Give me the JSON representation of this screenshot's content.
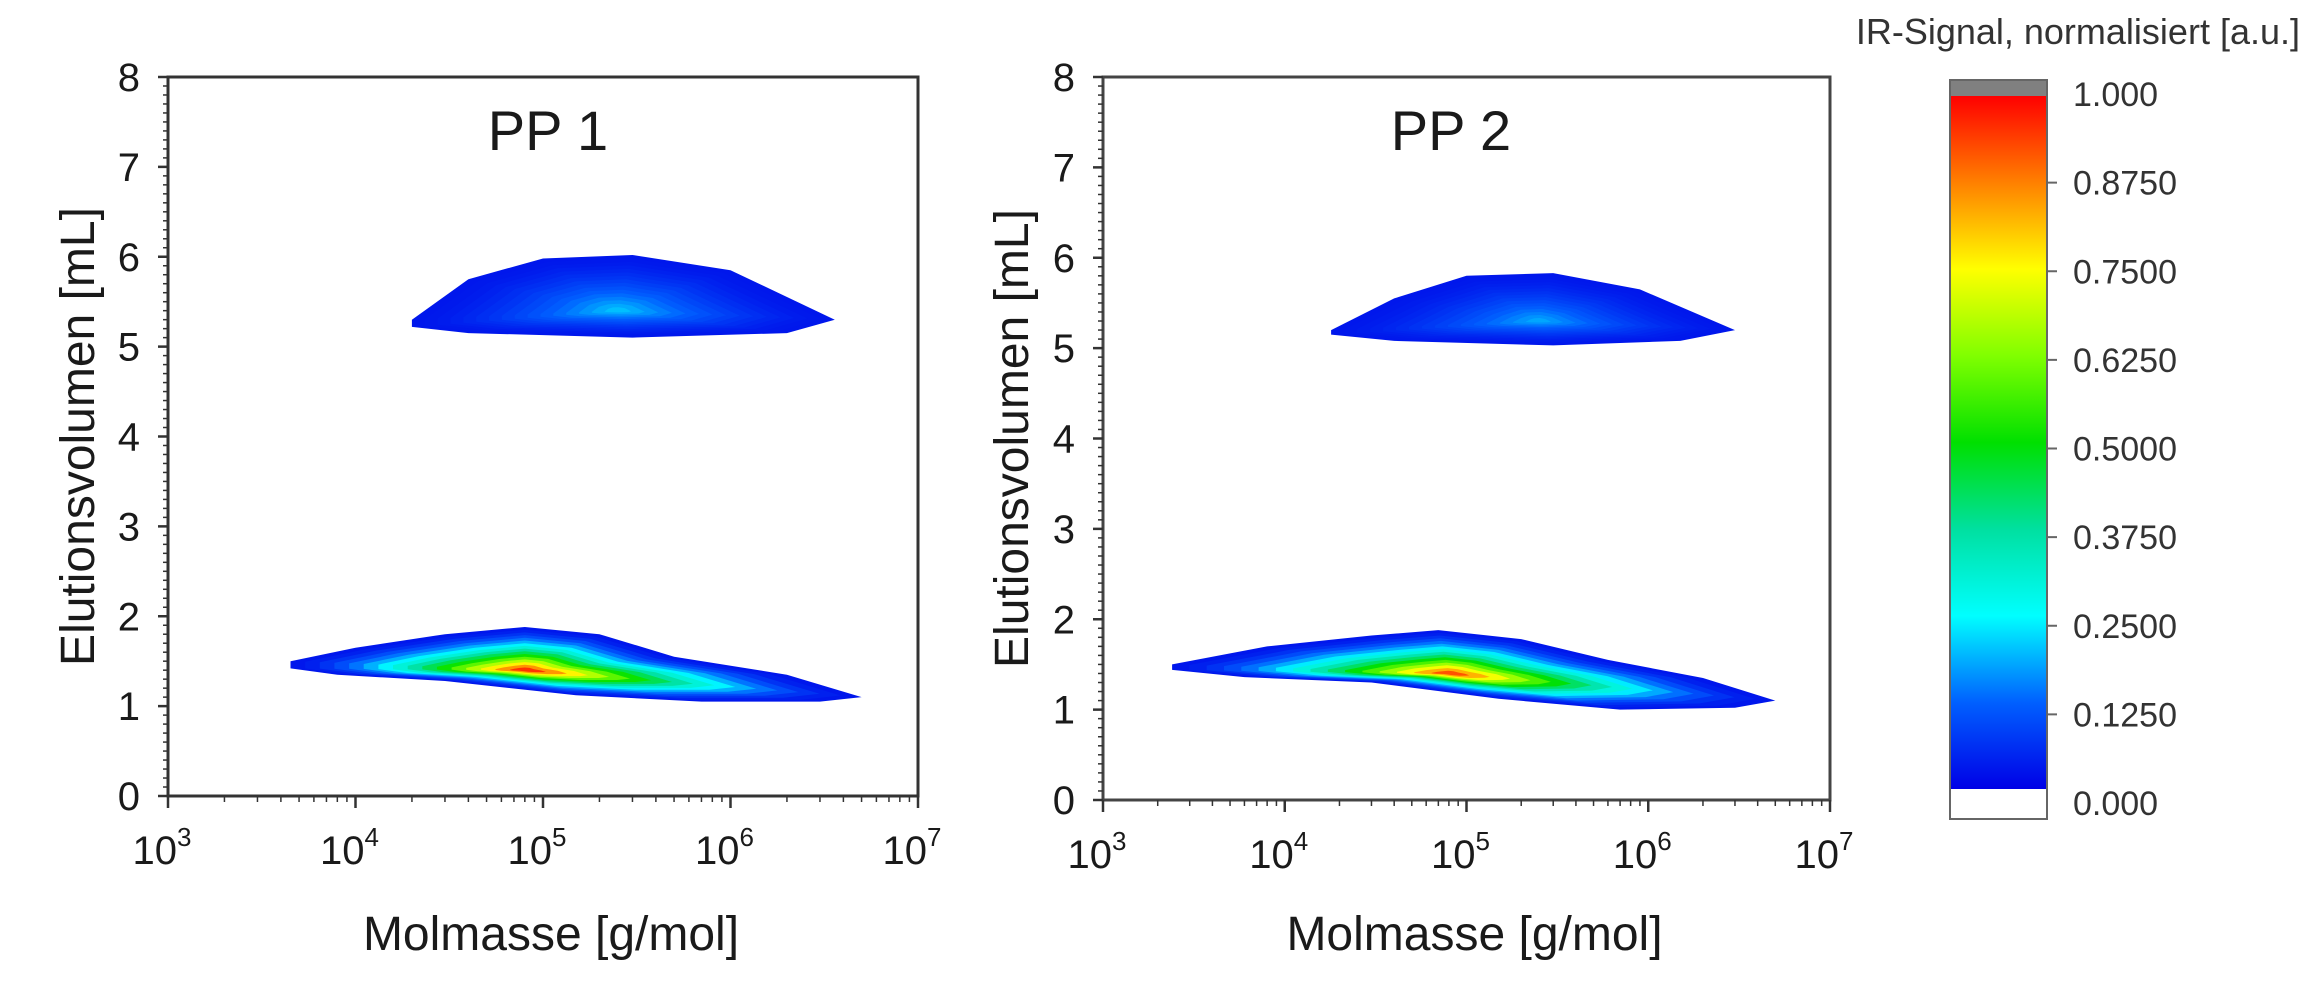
{
  "figure": {
    "colorbar": {
      "title": "IR-Signal, normalisiert [a.u.]",
      "ticks": [
        "1.000",
        "0.8750",
        "0.7500",
        "0.6250",
        "0.5000",
        "0.3750",
        "0.2500",
        "0.1250",
        "0.000"
      ],
      "tick_values": [
        1.0,
        0.875,
        0.75,
        0.625,
        0.5,
        0.375,
        0.25,
        0.125,
        0.0
      ],
      "range": [
        0,
        1
      ],
      "colormap": [
        "#ffffff",
        "#0000ff",
        "#0080ff",
        "#00ffff",
        "#00ff00",
        "#ffff00",
        "#ff8000",
        "#ff0000",
        "#808080"
      ],
      "colormap_stops": [
        {
          "value": 0.0,
          "color": "#0000e6"
        },
        {
          "value": 0.125,
          "color": "#0060ff"
        },
        {
          "value": 0.25,
          "color": "#00ffff"
        },
        {
          "value": 0.375,
          "color": "#00e0a0"
        },
        {
          "value": 0.5,
          "color": "#00e000"
        },
        {
          "value": 0.625,
          "color": "#80ff00"
        },
        {
          "value": 0.75,
          "color": "#ffff00"
        },
        {
          "value": 0.875,
          "color": "#ff8000"
        },
        {
          "value": 1.0,
          "color": "#ff0000"
        }
      ],
      "below_min_color": "#ffffff",
      "above_max_color": "#808080"
    }
  },
  "chart_data": [
    {
      "type": "heatmap",
      "title": "PP 1",
      "xlabel": "Molmasse [g/mol]",
      "ylabel": "Elutionsvolumen [mL]",
      "xscale": "log",
      "xlim": [
        1000,
        10000000
      ],
      "ylim": [
        0,
        8
      ],
      "xticks": [
        {
          "value": 1000,
          "base": "10",
          "exp": "3"
        },
        {
          "value": 10000,
          "base": "10",
          "exp": "4"
        },
        {
          "value": 100000,
          "base": "10",
          "exp": "5"
        },
        {
          "value": 1000000,
          "base": "10",
          "exp": "6"
        },
        {
          "value": 10000000,
          "base": "10",
          "exp": "7"
        }
      ],
      "yticks": [
        "0",
        "1",
        "2",
        "3",
        "4",
        "5",
        "6",
        "7",
        "8"
      ],
      "grid": false,
      "regions": [
        {
          "name": "upper-fraction",
          "outline": [
            [
              20000,
              5.3
            ],
            [
              40000,
              5.75
            ],
            [
              100000,
              5.98
            ],
            [
              300000,
              6.02
            ],
            [
              1000000,
              5.85
            ],
            [
              3600000,
              5.3
            ],
            [
              2000000,
              5.15
            ],
            [
              300000,
              5.1
            ],
            [
              40000,
              5.15
            ],
            [
              20000,
              5.22
            ]
          ],
          "peak": {
            "x": 250000,
            "y": 5.4,
            "intensity": 0.2
          },
          "edge_intensity": 0.03
        },
        {
          "name": "lower-fraction",
          "outline": [
            [
              4500,
              1.5
            ],
            [
              10000,
              1.65
            ],
            [
              30000,
              1.8
            ],
            [
              80000,
              1.88
            ],
            [
              200000,
              1.8
            ],
            [
              500000,
              1.55
            ],
            [
              2000000,
              1.35
            ],
            [
              5000000,
              1.1
            ],
            [
              3000000,
              1.05
            ],
            [
              700000,
              1.05
            ],
            [
              150000,
              1.12
            ],
            [
              30000,
              1.28
            ],
            [
              8000,
              1.35
            ],
            [
              4500,
              1.42
            ]
          ],
          "peak": {
            "x": 80000,
            "y": 1.4,
            "intensity": 0.95
          },
          "edge_intensity": 0.03
        }
      ]
    },
    {
      "type": "heatmap",
      "title": "PP 2",
      "xlabel": "Molmasse [g/mol]",
      "ylabel": "Elutionsvolumen [mL]",
      "xscale": "log",
      "xlim": [
        1000,
        10000000
      ],
      "ylim": [
        0,
        8
      ],
      "xticks": [
        {
          "value": 1000,
          "base": "10",
          "exp": "3"
        },
        {
          "value": 10000,
          "base": "10",
          "exp": "4"
        },
        {
          "value": 100000,
          "base": "10",
          "exp": "5"
        },
        {
          "value": 1000000,
          "base": "10",
          "exp": "6"
        },
        {
          "value": 10000000,
          "base": "10",
          "exp": "7"
        }
      ],
      "yticks": [
        "0",
        "1",
        "2",
        "3",
        "4",
        "5",
        "6",
        "7",
        "8"
      ],
      "grid": false,
      "regions": [
        {
          "name": "upper-fraction",
          "outline": [
            [
              18000,
              5.2
            ],
            [
              40000,
              5.55
            ],
            [
              100000,
              5.8
            ],
            [
              300000,
              5.83
            ],
            [
              900000,
              5.65
            ],
            [
              3000000,
              5.2
            ],
            [
              1500000,
              5.08
            ],
            [
              300000,
              5.03
            ],
            [
              40000,
              5.08
            ],
            [
              18000,
              5.15
            ]
          ],
          "peak": {
            "x": 250000,
            "y": 5.3,
            "intensity": 0.18
          },
          "edge_intensity": 0.03
        },
        {
          "name": "lower-fraction",
          "outline": [
            [
              2400,
              1.5
            ],
            [
              8000,
              1.7
            ],
            [
              30000,
              1.82
            ],
            [
              70000,
              1.88
            ],
            [
              200000,
              1.78
            ],
            [
              600000,
              1.55
            ],
            [
              2000000,
              1.35
            ],
            [
              5000000,
              1.1
            ],
            [
              3000000,
              1.02
            ],
            [
              700000,
              1.0
            ],
            [
              150000,
              1.12
            ],
            [
              30000,
              1.3
            ],
            [
              6000,
              1.36
            ],
            [
              2400,
              1.44
            ]
          ],
          "peak": {
            "x": 80000,
            "y": 1.4,
            "intensity": 0.92
          },
          "edge_intensity": 0.03
        }
      ]
    }
  ]
}
